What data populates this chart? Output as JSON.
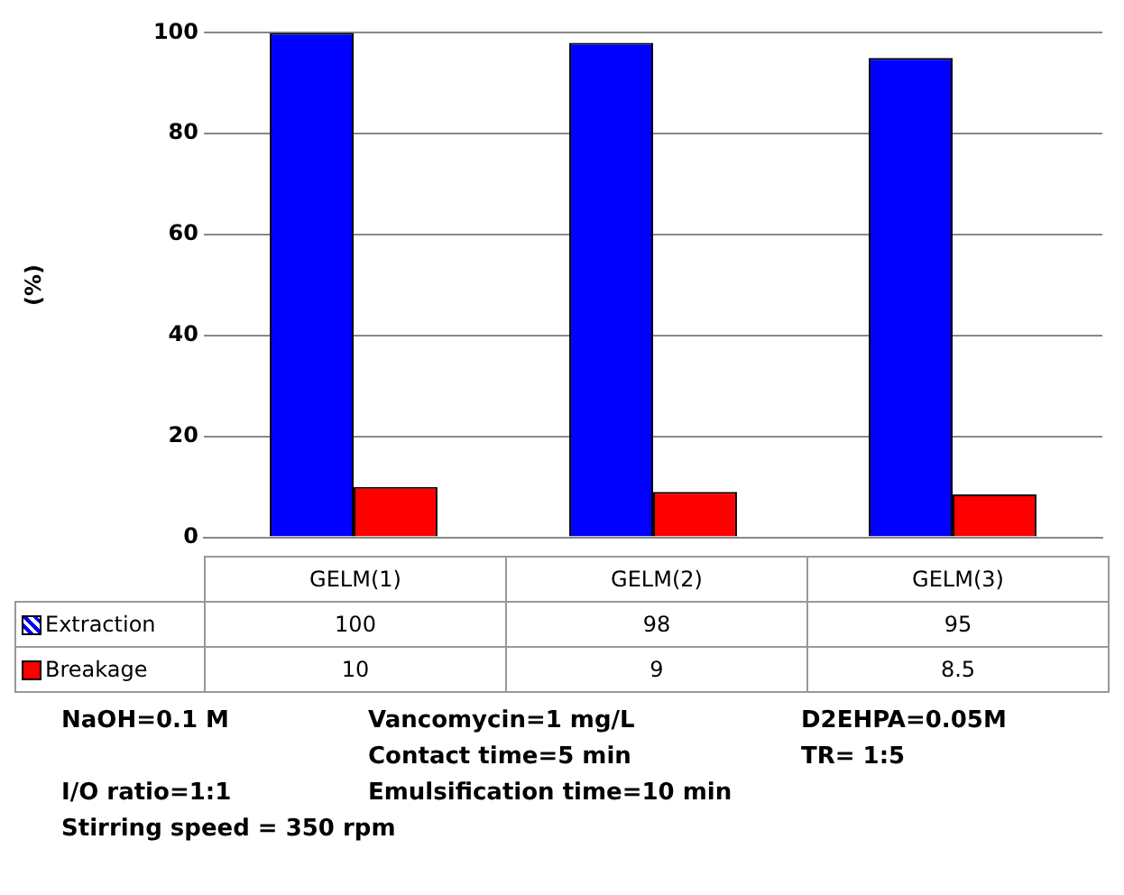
{
  "chart_data": {
    "type": "bar",
    "ylabel": "(%)",
    "categories": [
      "GELM(1)",
      "GELM(2)",
      "GELM(3)"
    ],
    "series": [
      {
        "name": "Extraction",
        "color": "#0000ff",
        "values": [
          100,
          98,
          95
        ]
      },
      {
        "name": "Breakage",
        "color": "#ff0000",
        "values": [
          10,
          9,
          8.5
        ]
      }
    ],
    "ylim": [
      0,
      100
    ],
    "yticks": [
      0,
      20,
      40,
      60,
      80,
      100
    ],
    "grid": "y",
    "data_labels": true,
    "legend": "bottom left",
    "annotations": [
      "NaOH=0.1 M",
      "Vancomycin=1 mg/L",
      "D2EHPA=0.05M",
      "Contact time=5 min",
      "TR= 1:5",
      "I/O ratio=1:1",
      "Emulsification time=10 min",
      "Stirring speed = 350 rpm"
    ]
  }
}
